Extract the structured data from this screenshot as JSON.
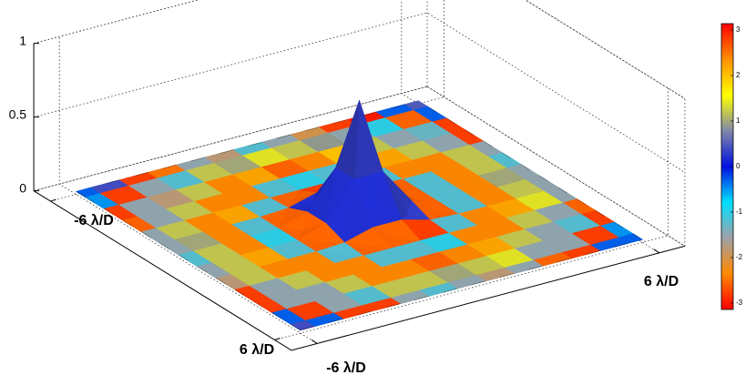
{
  "chart_data": {
    "type": "surface",
    "x": [
      -6,
      -5,
      -4,
      -3,
      -2,
      -1,
      0,
      1,
      2,
      3,
      4,
      5,
      6
    ],
    "y": [
      -6,
      -5,
      -4,
      -3,
      -2,
      -1,
      0,
      1,
      2,
      3,
      4,
      5,
      6
    ],
    "z": [
      [
        0.02,
        0.02,
        0.02,
        0.02,
        0.02,
        0.02,
        0.02,
        0.02,
        0.02,
        0.02,
        0.02,
        0.02,
        0.02
      ],
      [
        0.02,
        0.02,
        0.02,
        0.02,
        0.02,
        0.02,
        0.02,
        0.02,
        0.02,
        0.02,
        0.02,
        0.02,
        0.02
      ],
      [
        0.02,
        0.02,
        0.02,
        0.02,
        0.02,
        0.02,
        0.02,
        0.02,
        0.02,
        0.02,
        0.02,
        0.02,
        0.02
      ],
      [
        0.02,
        0.02,
        0.02,
        0.02,
        0.02,
        0.02,
        0.02,
        0.02,
        0.02,
        0.02,
        0.02,
        0.02,
        0.02
      ],
      [
        0.02,
        0.02,
        0.02,
        0.02,
        0.02,
        0.02,
        0.02,
        0.02,
        0.02,
        0.02,
        0.02,
        0.02,
        0.02
      ],
      [
        0.02,
        0.02,
        0.02,
        0.02,
        0.02,
        0.06,
        0.23,
        0.06,
        0.02,
        0.02,
        0.02,
        0.02,
        0.02
      ],
      [
        0.02,
        0.02,
        0.02,
        0.02,
        0.02,
        0.23,
        0.8,
        0.23,
        0.02,
        0.02,
        0.02,
        0.02,
        0.02
      ],
      [
        0.02,
        0.02,
        0.02,
        0.02,
        0.02,
        0.06,
        0.23,
        0.06,
        0.02,
        0.02,
        0.02,
        0.02,
        0.02
      ],
      [
        0.02,
        0.02,
        0.02,
        0.02,
        0.02,
        0.02,
        0.02,
        0.02,
        0.02,
        0.02,
        0.02,
        0.02,
        0.02
      ],
      [
        0.02,
        0.02,
        0.02,
        0.02,
        0.02,
        0.02,
        0.02,
        0.02,
        0.02,
        0.02,
        0.02,
        0.02,
        0.02
      ],
      [
        0.02,
        0.02,
        0.02,
        0.02,
        0.02,
        0.02,
        0.02,
        0.02,
        0.02,
        0.02,
        0.02,
        0.02,
        0.02
      ],
      [
        0.02,
        0.02,
        0.02,
        0.02,
        0.02,
        0.02,
        0.02,
        0.02,
        0.02,
        0.02,
        0.02,
        0.02,
        0.02
      ],
      [
        0.02,
        0.02,
        0.02,
        0.02,
        0.02,
        0.02,
        0.02,
        0.02,
        0.02,
        0.02,
        0.02,
        0.02,
        0.02
      ]
    ],
    "c": [
      [
        -0.3,
        0.4,
        2.8,
        2.5,
        -1.5,
        -1.8,
        -1.2,
        -1.5,
        -2.0,
        2.8,
        3.0,
        -0.3,
        0.5
      ],
      [
        -0.5,
        2.8,
        -1.5,
        -1.2,
        1.2,
        1.0,
        1.4,
        1.2,
        0.9,
        -1.5,
        -1.0,
        2.6,
        -0.3
      ],
      [
        2.8,
        -1.5,
        -1.8,
        1.2,
        2.4,
        2.2,
        2.6,
        2.4,
        2.0,
        1.2,
        -1.5,
        -1.3,
        2.8
      ],
      [
        2.6,
        -1.5,
        1.2,
        2.4,
        2.4,
        -1.2,
        -1.0,
        -1.2,
        2.4,
        2.2,
        1.2,
        -1.5,
        2.8
      ],
      [
        -1.5,
        1.2,
        2.4,
        2.2,
        -1.2,
        2.6,
        2.8,
        2.6,
        -1.2,
        2.4,
        2.4,
        1.2,
        -1.5
      ],
      [
        -1.5,
        1.0,
        2.4,
        -1.2,
        2.6,
        0.2,
        0.3,
        0.2,
        2.6,
        -1.2,
        2.4,
        1.2,
        -1.2
      ],
      [
        -1.2,
        1.2,
        2.4,
        -1.0,
        2.6,
        0.2,
        0.3,
        0.2,
        2.6,
        -1.2,
        2.4,
        1.0,
        -1.5
      ],
      [
        -1.5,
        1.2,
        2.2,
        -1.2,
        2.6,
        0.2,
        0.2,
        0.3,
        2.6,
        -1.2,
        2.4,
        1.2,
        -1.5
      ],
      [
        -1.8,
        1.2,
        2.4,
        2.4,
        -1.2,
        2.6,
        2.6,
        2.8,
        -1.2,
        2.4,
        2.2,
        1.4,
        -1.5
      ],
      [
        2.8,
        -1.5,
        1.2,
        2.4,
        2.4,
        -1.2,
        -1.2,
        -1.0,
        2.4,
        2.4,
        1.2,
        -1.5,
        2.6
      ],
      [
        2.8,
        -1.5,
        -1.5,
        1.2,
        2.4,
        2.4,
        2.6,
        2.4,
        2.2,
        1.2,
        -1.5,
        -1.2,
        2.8
      ],
      [
        -0.3,
        2.8,
        -1.5,
        -1.2,
        1.2,
        1.2,
        1.0,
        1.2,
        1.4,
        -1.5,
        -1.5,
        2.8,
        -0.5
      ],
      [
        0.4,
        -0.3,
        2.8,
        2.8,
        -1.5,
        -1.2,
        -1.5,
        -1.8,
        -1.5,
        2.6,
        2.8,
        -0.3,
        -0.3
      ]
    ],
    "xlim": [
      -6.9,
      6.9
    ],
    "ylim": [
      -6.9,
      6.9
    ],
    "zlim": [
      0,
      1
    ],
    "xticks": [
      {
        "value": -6,
        "label": "-6 λ/D"
      },
      {
        "value": 6,
        "label": "6 λ/D"
      }
    ],
    "yticks": [
      {
        "value": -6,
        "label": "-6 λ/D"
      },
      {
        "value": 6,
        "label": "6 λ/D"
      }
    ],
    "zticks": [
      0,
      0.5,
      1
    ],
    "clim": [
      -3.14,
      3.14
    ],
    "cticks": [
      -3,
      -2,
      -1,
      0,
      1,
      2,
      3
    ],
    "colormap": [
      "#ff0000",
      "#ff8a00",
      "#a0a0a8",
      "#00e0ff",
      "#0010e0",
      "#8088a8",
      "#ffff00",
      "#ff9000",
      "#ff0000"
    ],
    "grid": true
  }
}
